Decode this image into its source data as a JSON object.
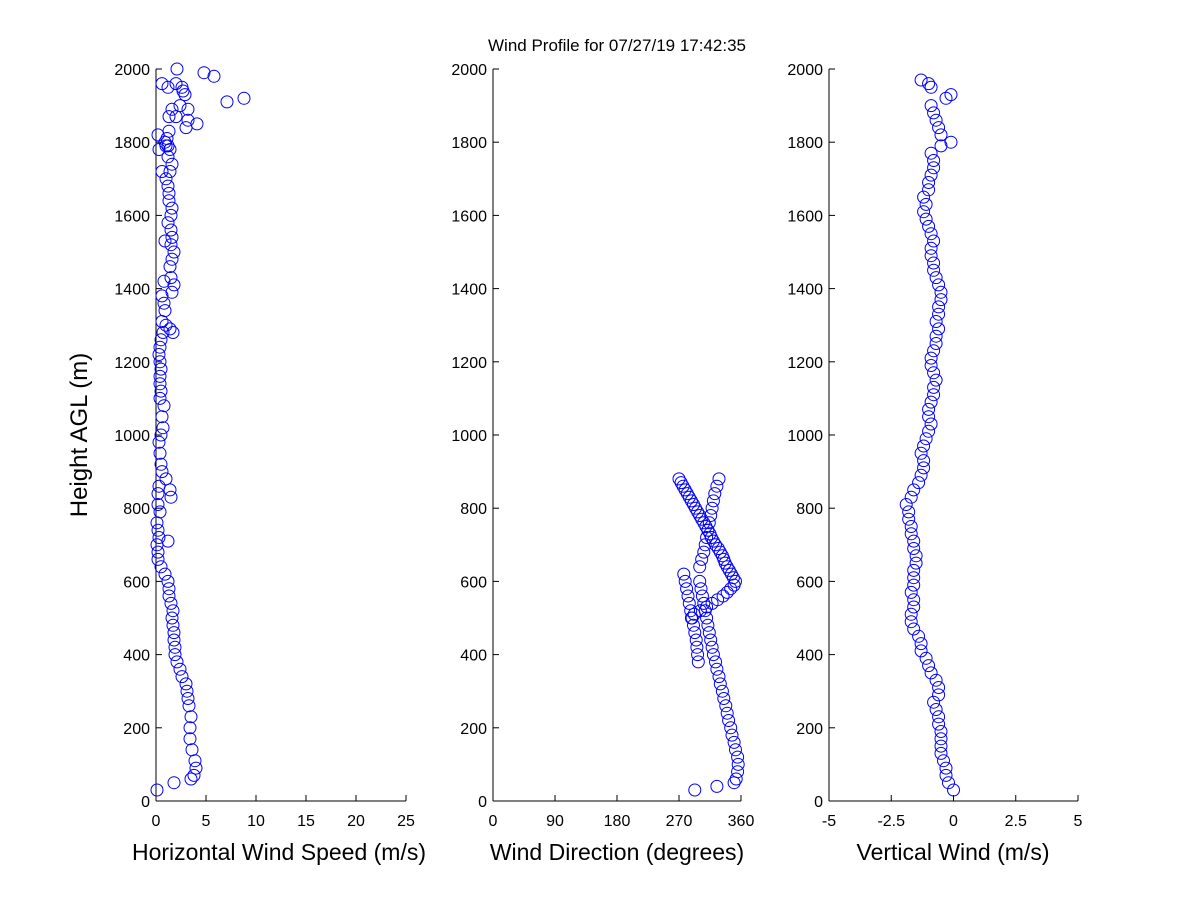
{
  "figure": {
    "title": "Wind Profile for  07/27/19 17:42:35",
    "marker_color": "#0000ff",
    "background": "#ffffff"
  },
  "chart_data": [
    {
      "type": "scatter",
      "id": "speed",
      "title": "Wind Profile for  07/27/19 17:42:35",
      "xlabel": "Horizontal Wind Speed (m/s)",
      "ylabel": "Height AGL (m)",
      "xlim": [
        0,
        25
      ],
      "ylim": [
        0,
        2000
      ],
      "xticks": [
        0,
        5,
        10,
        15,
        20,
        25
      ],
      "xtick_labels": [
        "0",
        "5",
        "10",
        "15",
        "20",
        "25"
      ],
      "yticks": [
        0,
        200,
        400,
        600,
        800,
        1000,
        1200,
        1400,
        1600,
        1800,
        2000
      ],
      "ytick_labels": [
        "0",
        "200",
        "400",
        "600",
        "800",
        "1000",
        "1200",
        "1400",
        "1600",
        "1800",
        "2000"
      ],
      "grid": false,
      "marker": "circle",
      "series": [
        {
          "x": [
            0.1,
            1.8,
            3.5,
            3.8,
            4.0,
            3.9,
            3.6,
            3.4,
            3.4,
            3.5,
            3.3,
            3.2,
            3.1,
            3.0,
            2.6,
            2.4,
            2.1,
            1.9,
            1.9,
            1.8,
            1.8,
            1.7,
            1.6,
            1.7,
            1.5,
            1.3,
            1.3,
            1.2,
            0.9,
            0.5,
            0.2,
            0.2,
            0.1,
            0.3,
            0.2,
            0.1,
            1.2,
            0.4,
            0.2,
            0.2,
            0.3,
            1.5,
            1.4,
            1.0,
            0.6,
            0.5,
            0.4,
            0.3,
            0.5,
            0.7,
            0.6,
            0.8,
            0.4,
            0.5,
            0.4,
            0.4,
            0.5,
            0.4,
            0.3,
            0.4,
            0.5,
            0.7,
            0.6,
            1.0,
            1.4,
            1.7,
            0.9,
            0.8,
            0.6,
            1.6,
            1.8,
            0.8,
            1.5,
            1.4,
            1.6,
            1.8,
            1.5,
            1.6,
            0.9,
            1.5,
            1.2,
            1.5,
            1.6,
            1.3,
            1.3,
            1.2,
            1.0,
            1.4,
            1.6,
            1.2,
            0.6,
            1.4,
            1.1,
            1.3,
            1.3,
            1.0,
            0.9,
            0.2,
            0.3,
            1.2,
            3.0,
            4.1,
            2.0,
            3.2,
            3.2,
            1.6,
            2.4,
            2.9,
            8.8,
            7.1,
            2.7,
            1.2,
            2.6,
            2.0,
            5.8,
            4.8,
            0.6,
            2.1
          ],
          "y": [
            30,
            50,
            60,
            70,
            90,
            110,
            140,
            170,
            200,
            230,
            260,
            280,
            300,
            320,
            340,
            360,
            380,
            400,
            420,
            440,
            460,
            480,
            500,
            520,
            540,
            560,
            580,
            600,
            620,
            640,
            660,
            680,
            700,
            720,
            740,
            760,
            710,
            790,
            810,
            840,
            860,
            830,
            850,
            880,
            900,
            920,
            950,
            980,
            1000,
            1020,
            1050,
            1080,
            1100,
            1120,
            1140,
            1160,
            1180,
            1200,
            1220,
            1240,
            1260,
            1280,
            1310,
            1300,
            1290,
            1280,
            1340,
            1360,
            1380,
            1390,
            1410,
            1420,
            1430,
            1460,
            1480,
            1500,
            1520,
            1540,
            1530,
            1560,
            1580,
            1600,
            1620,
            1640,
            1660,
            1680,
            1700,
            1720,
            1740,
            1760,
            1720,
            1780,
            1810,
            1830,
            1870,
            1790,
            1800,
            1820,
            1780,
            1790,
            1840,
            1850,
            1870,
            1860,
            1890,
            1890,
            1900,
            1930,
            1920,
            1910,
            1940,
            1950,
            1950,
            1960,
            1980,
            1990,
            1960,
            2000
          ]
        }
      ]
    },
    {
      "type": "scatter",
      "id": "direction",
      "xlabel": "Wind Direction (degrees)",
      "ylabel": "",
      "xlim": [
        0,
        360
      ],
      "ylim": [
        0,
        2000
      ],
      "xticks": [
        0,
        90,
        180,
        270,
        360
      ],
      "xtick_labels": [
        "0",
        "90",
        "180",
        "270",
        "360"
      ],
      "yticks": [
        0,
        200,
        400,
        600,
        800,
        1000,
        1200,
        1400,
        1600,
        1800,
        2000
      ],
      "ytick_labels": [
        "0",
        "200",
        "400",
        "600",
        "800",
        "1000",
        "1200",
        "1400",
        "1600",
        "1800",
        "2000"
      ],
      "grid": false,
      "marker": "circle",
      "series": [
        {
          "x": [
            293,
            325,
            350,
            353,
            355,
            356,
            355,
            352,
            350,
            347,
            345,
            342,
            340,
            338,
            335,
            333,
            330,
            328,
            325,
            323,
            320,
            318,
            316,
            314,
            312,
            310,
            308,
            306,
            304,
            302,
            300,
            298,
            297,
            296,
            295,
            293,
            291,
            289,
            287,
            285,
            283,
            281,
            279,
            277,
            300,
            303,
            306,
            308,
            310,
            312,
            314,
            316,
            318,
            320,
            322,
            325,
            328,
            288,
            292,
            301,
            310,
            318,
            326,
            334,
            340,
            345,
            350,
            352,
            349,
            346,
            343,
            340,
            337,
            335,
            333,
            330,
            327,
            323,
            320,
            317,
            315,
            312,
            309,
            306,
            303,
            300,
            297,
            294,
            291,
            288,
            285,
            282,
            279,
            276,
            273,
            270
          ],
          "y": [
            30,
            40,
            50,
            60,
            80,
            100,
            120,
            140,
            160,
            180,
            200,
            220,
            240,
            260,
            280,
            300,
            320,
            340,
            360,
            380,
            400,
            420,
            440,
            460,
            480,
            500,
            520,
            540,
            560,
            580,
            600,
            380,
            400,
            420,
            440,
            460,
            480,
            500,
            520,
            540,
            560,
            580,
            600,
            620,
            640,
            660,
            680,
            700,
            720,
            740,
            760,
            780,
            800,
            820,
            840,
            860,
            880,
            500,
            510,
            520,
            530,
            540,
            550,
            560,
            570,
            580,
            590,
            600,
            610,
            620,
            630,
            640,
            650,
            660,
            670,
            680,
            690,
            700,
            710,
            720,
            730,
            740,
            750,
            760,
            770,
            780,
            790,
            800,
            810,
            820,
            830,
            840,
            850,
            860,
            870,
            880
          ]
        }
      ]
    },
    {
      "type": "scatter",
      "id": "vertical",
      "xlabel": "Vertical Wind (m/s)",
      "ylabel": "",
      "xlim": [
        -5,
        5
      ],
      "ylim": [
        0,
        2000
      ],
      "xticks": [
        -5,
        -2.5,
        0,
        2.5,
        5
      ],
      "xtick_labels": [
        "-5",
        "-2.5",
        "0",
        "2.5",
        "5"
      ],
      "yticks": [
        0,
        200,
        400,
        600,
        800,
        1000,
        1200,
        1400,
        1600,
        1800,
        2000
      ],
      "ytick_labels": [
        "0",
        "200",
        "400",
        "600",
        "800",
        "1000",
        "1200",
        "1400",
        "1600",
        "1800",
        "2000"
      ],
      "grid": false,
      "marker": "circle",
      "series": [
        {
          "x": [
            0.0,
            -0.2,
            -0.3,
            -0.3,
            -0.4,
            -0.5,
            -0.5,
            -0.5,
            -0.5,
            -0.6,
            -0.6,
            -0.7,
            -0.8,
            -0.6,
            -0.6,
            -0.7,
            -0.9,
            -1.0,
            -1.1,
            -1.3,
            -1.3,
            -1.4,
            -1.6,
            -1.7,
            -1.7,
            -1.6,
            -1.6,
            -1.7,
            -1.6,
            -1.6,
            -1.6,
            -1.5,
            -1.5,
            -1.6,
            -1.6,
            -1.7,
            -1.7,
            -1.8,
            -1.8,
            -1.9,
            -1.7,
            -1.6,
            -1.4,
            -1.3,
            -1.2,
            -1.2,
            -1.3,
            -1.2,
            -1.1,
            -1.0,
            -0.9,
            -1.0,
            -1.0,
            -0.9,
            -0.8,
            -0.8,
            -0.7,
            -0.8,
            -0.9,
            -0.9,
            -0.8,
            -0.7,
            -0.7,
            -0.6,
            -0.7,
            -0.6,
            -0.6,
            -0.5,
            -0.5,
            -0.6,
            -0.7,
            -0.8,
            -0.8,
            -0.9,
            -0.9,
            -0.8,
            -0.9,
            -1.0,
            -1.1,
            -1.2,
            -1.1,
            -1.2,
            -1.0,
            -1.0,
            -0.9,
            -0.8,
            -0.8,
            -0.9,
            -0.5,
            -0.1,
            -0.5,
            -0.6,
            -0.7,
            -0.8,
            -0.9,
            -0.3,
            -0.1,
            -0.9,
            -1.0,
            -1.3
          ],
          "y": [
            30,
            50,
            70,
            90,
            110,
            130,
            150,
            170,
            190,
            210,
            230,
            250,
            270,
            290,
            310,
            330,
            350,
            370,
            390,
            410,
            430,
            450,
            470,
            490,
            510,
            530,
            550,
            570,
            590,
            610,
            630,
            650,
            670,
            690,
            710,
            730,
            750,
            770,
            790,
            810,
            830,
            850,
            870,
            890,
            910,
            930,
            950,
            970,
            990,
            1010,
            1030,
            1050,
            1070,
            1090,
            1110,
            1130,
            1150,
            1170,
            1190,
            1210,
            1230,
            1250,
            1270,
            1290,
            1310,
            1330,
            1350,
            1370,
            1390,
            1410,
            1430,
            1450,
            1470,
            1490,
            1510,
            1530,
            1550,
            1570,
            1590,
            1610,
            1630,
            1650,
            1670,
            1690,
            1710,
            1730,
            1750,
            1770,
            1790,
            1800,
            1820,
            1840,
            1860,
            1880,
            1900,
            1920,
            1930,
            1950,
            1960,
            1970
          ]
        }
      ]
    }
  ]
}
